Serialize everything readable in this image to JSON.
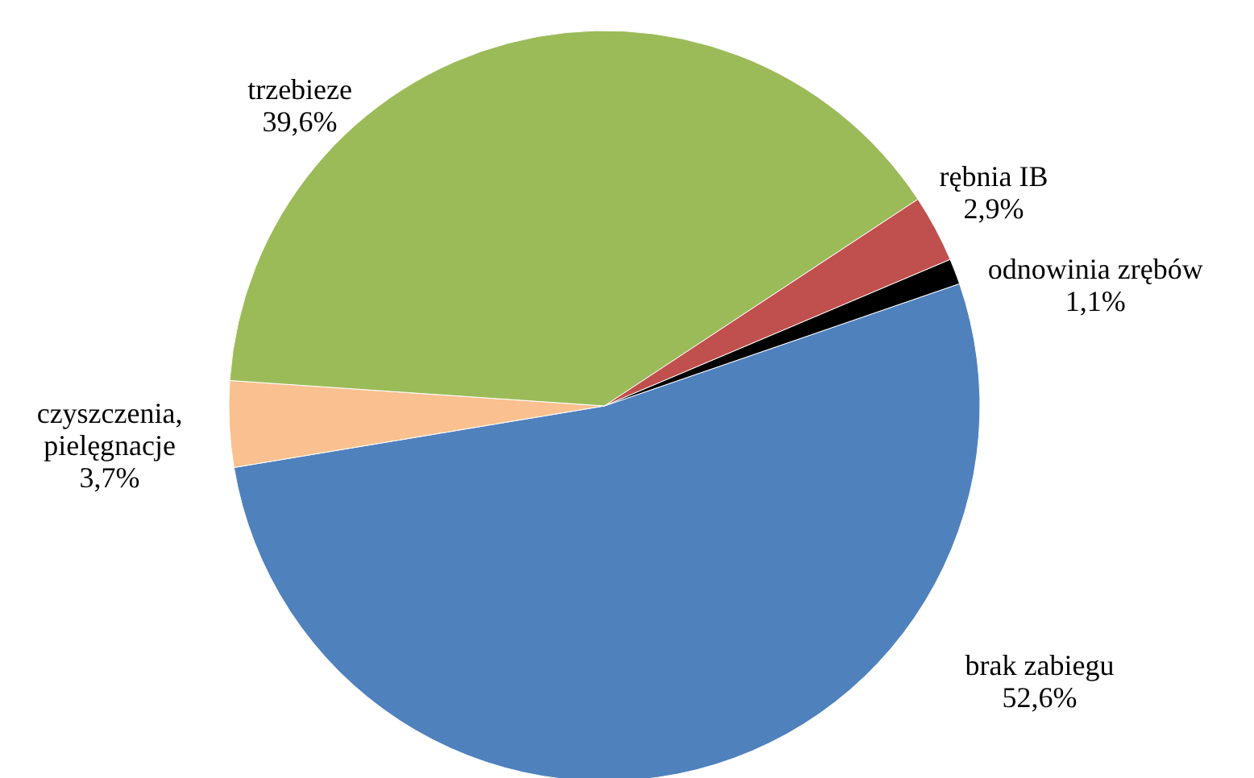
{
  "chart_data": {
    "type": "pie",
    "categories": [
      "brak zabiegu",
      "czyszczenia, pielęgnacje",
      "trzebieze",
      "rębnia IB",
      "odnowinia zrębów"
    ],
    "values": [
      52.6,
      3.7,
      39.6,
      2.9,
      1.1
    ],
    "colors": [
      "#4f81bd",
      "#fac090",
      "#9bbb59",
      "#c0504d",
      "#000000"
    ],
    "value_labels": [
      "52,6%",
      "3,7%",
      "39,6%",
      "2,9%",
      "1,1%"
    ]
  }
}
